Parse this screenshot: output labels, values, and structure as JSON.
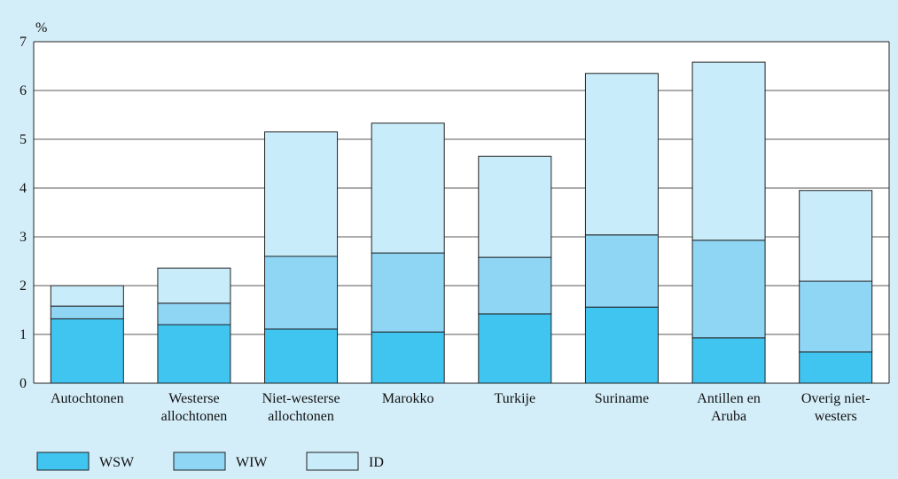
{
  "chart_data": {
    "type": "stacked_bar",
    "y_label": "%",
    "categories": [
      "Autochtonen",
      "Westerse\nallochtonen",
      "Niet-westerse\nallochtonen",
      "Marokko",
      "Turkije",
      "Suriname",
      "Antillen en\nAruba",
      "Overig niet-\nwesters"
    ],
    "series": [
      {
        "name": "WSW",
        "color": "#40c4f0",
        "values": [
          1.32,
          1.2,
          1.11,
          1.05,
          1.42,
          1.56,
          0.93,
          0.64
        ]
      },
      {
        "name": "WIW",
        "color": "#8fd6f5",
        "values": [
          0.26,
          0.44,
          1.49,
          1.62,
          1.16,
          1.48,
          2.0,
          1.45
        ]
      },
      {
        "name": "ID",
        "color": "#c9ecfa",
        "values": [
          0.42,
          0.72,
          2.55,
          2.66,
          2.07,
          3.31,
          3.65,
          1.86
        ]
      }
    ],
    "ylim": [
      0,
      7
    ],
    "yticks": [
      0,
      1,
      2,
      3,
      4,
      5,
      6,
      7
    ],
    "grid": true,
    "legend": "bottom"
  }
}
